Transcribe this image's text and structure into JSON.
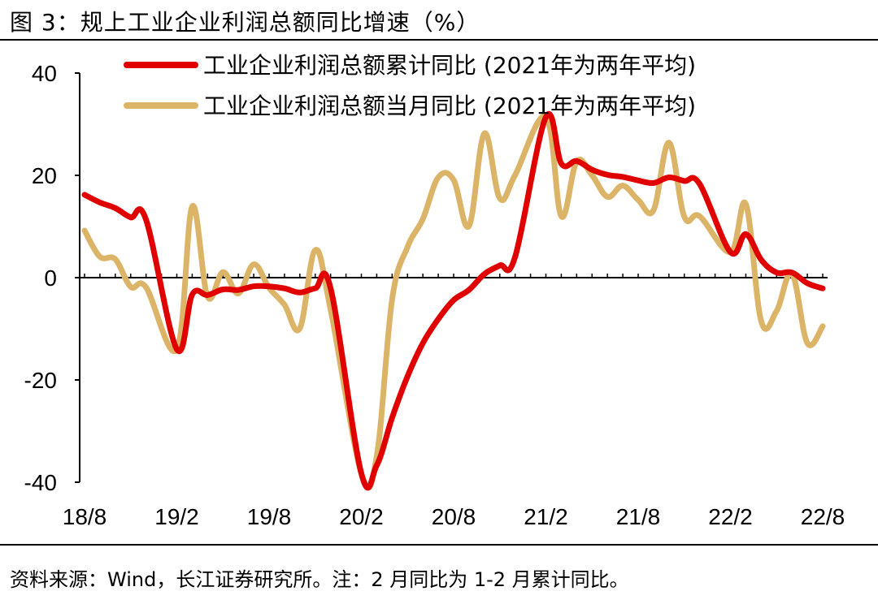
{
  "header": {
    "title": "图 3：规上工业企业利润总额同比增速（%）"
  },
  "footer": {
    "source": "资料来源：Wind，长江证券研究所。注：2 月同比为 1-2 月累计同比。"
  },
  "chart_data": {
    "type": "line",
    "title": "图 3：规上工业企业利润总额同比增速（%）",
    "xlabel": "",
    "ylabel": "",
    "ylim": [
      -40,
      40
    ],
    "yticks": [
      40,
      20,
      0,
      -20,
      -40
    ],
    "x_tick_labels": [
      "18/8",
      "19/2",
      "19/8",
      "20/2",
      "20/8",
      "21/2",
      "21/8",
      "22/2",
      "22/8"
    ],
    "x": [
      "18/8",
      "18/9",
      "18/10",
      "18/11",
      "18/12",
      "19/1",
      "19/2",
      "19/3",
      "19/4",
      "19/5",
      "19/6",
      "19/7",
      "19/8",
      "19/9",
      "19/10",
      "19/11",
      "19/12",
      "20/1",
      "20/2",
      "20/3",
      "20/4",
      "20/5",
      "20/6",
      "20/7",
      "20/8",
      "20/9",
      "20/10",
      "20/11",
      "20/12",
      "21/1",
      "21/2",
      "21/3",
      "21/4",
      "21/5",
      "21/6",
      "21/7",
      "21/8",
      "21/9",
      "21/10",
      "21/11",
      "21/12",
      "22/1",
      "22/2",
      "22/3",
      "22/4",
      "22/5",
      "22/6",
      "22/7",
      "22/8"
    ],
    "grid": false,
    "legend_position": "top",
    "series": [
      {
        "name": "工业企业利润总额累计同比 (2021年为两年平均)",
        "color": "#e00000",
        "values": [
          16.2,
          14.7,
          13.6,
          11.8,
          11.3,
          null,
          -14.0,
          -3.3,
          -3.4,
          -2.3,
          -2.4,
          -1.7,
          -1.7,
          -2.1,
          -2.9,
          -2.1,
          -2.1,
          null,
          -38.3,
          -36.7,
          -27.4,
          -19.3,
          -12.8,
          -8.1,
          -4.4,
          -2.4,
          0.7,
          2.4,
          4.1,
          null,
          31.4,
          22.3,
          22.8,
          21.1,
          20.1,
          19.7,
          19.0,
          18.5,
          19.6,
          18.9,
          18.3,
          null,
          5.0,
          8.5,
          3.5,
          1.0,
          1.0,
          -1.1,
          -2.1
        ]
      },
      {
        "name": "工业企业利润总额当月同比 (2021年为两年平均)",
        "color": "#dcb468",
        "values": [
          9.2,
          4.1,
          3.6,
          -1.8,
          -1.9,
          null,
          -14.0,
          13.9,
          -3.7,
          1.1,
          -3.1,
          2.6,
          -2.0,
          -5.3,
          -9.9,
          5.4,
          -6.3,
          null,
          -38.3,
          -34.9,
          -4.3,
          6.0,
          11.5,
          19.6,
          19.1,
          10.1,
          28.2,
          15.5,
          20.1,
          null,
          31.4,
          12.0,
          22.7,
          20.0,
          15.8,
          18.0,
          15.2,
          13.2,
          26.4,
          11.9,
          12.0,
          null,
          5.0,
          14.4,
          -8.5,
          -6.5,
          0.8,
          -12.8,
          -9.5
        ]
      }
    ]
  }
}
